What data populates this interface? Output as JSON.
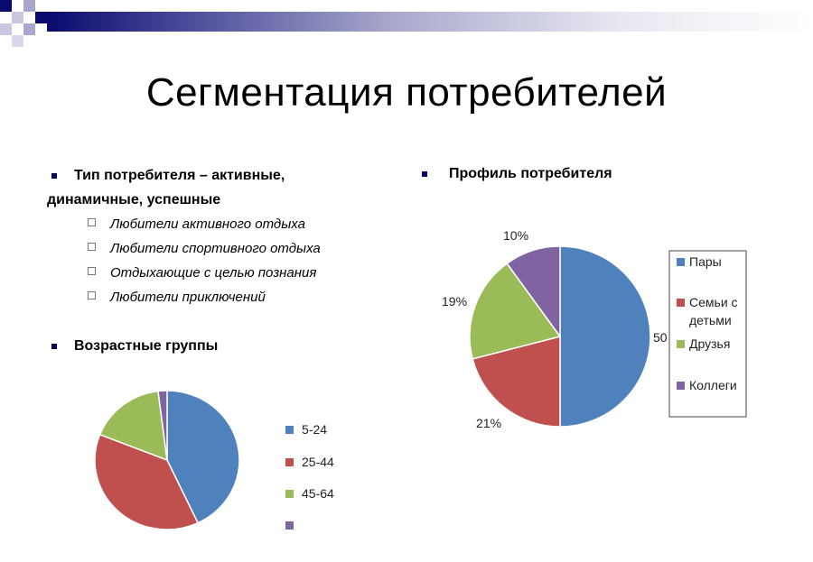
{
  "title": "Сегментация потребителей",
  "bullets": {
    "consumer_type_line1": "Тип потребителя – активные,",
    "consumer_type_line2": "динамичные, успешные",
    "sub_items": [
      "Любители активного отдыха",
      "Любители спортивного отдыха",
      "Отдыхающие с целью познания",
      "Любители приключений"
    ],
    "age_groups": "Возрастные группы",
    "consumer_profile": "Профиль потребителя"
  },
  "colors": {
    "blue": "#4f81bd",
    "red": "#c0504d",
    "green": "#9bbb59",
    "purple": "#8064a2",
    "header": "#0a0a6e"
  },
  "chart_data": [
    {
      "type": "pie",
      "title": "",
      "categories": [
        "5-24",
        "25-44",
        "45-64",
        ""
      ],
      "values": [
        43,
        38,
        17,
        2
      ],
      "colors": [
        "#4f81bd",
        "#c0504d",
        "#9bbb59",
        "#8064a2"
      ],
      "legend": "right"
    },
    {
      "type": "pie",
      "title": "",
      "categories": [
        "Пары",
        "Семьи с детьми",
        "Друзья",
        "Коллеги"
      ],
      "values": [
        50,
        21,
        19,
        10
      ],
      "data_labels": [
        "50",
        "21%",
        "19%",
        "10%"
      ],
      "colors": [
        "#4f81bd",
        "#c0504d",
        "#9bbb59",
        "#8064a2"
      ],
      "legend": "right"
    }
  ]
}
